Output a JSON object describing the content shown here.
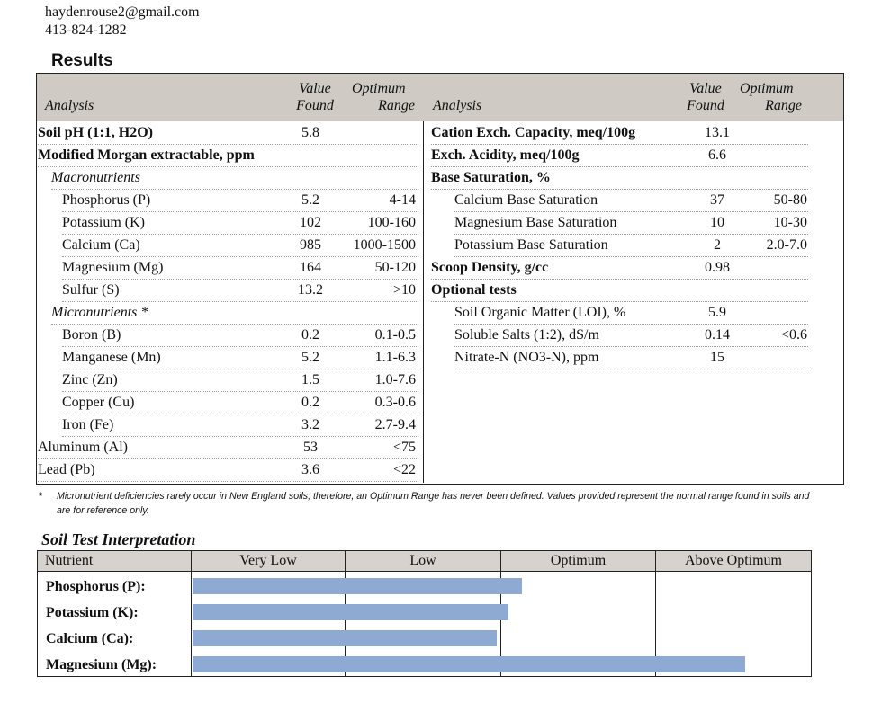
{
  "contact": {
    "email": "haydenrouse2@gmail.com",
    "phone": "413-824-1282"
  },
  "results": {
    "title": "Results",
    "headers": {
      "analysis": "Analysis",
      "value_top": "Value",
      "value_bottom": "Found",
      "optimum_top": "Optimum",
      "optimum_bottom": "Range"
    },
    "left_rows": [
      {
        "label": "Soil pH (1:1, H2O)",
        "value": "5.8",
        "range": "",
        "style": "bold",
        "indent": 0
      },
      {
        "label": "Modified Morgan extractable, ppm",
        "value": "",
        "range": "",
        "style": "bold",
        "indent": 0
      },
      {
        "label": "Macronutrients",
        "value": "",
        "range": "",
        "style": "italic",
        "indent": 1
      },
      {
        "label": "Phosphorus (P)",
        "value": "5.2",
        "range": "4-14",
        "style": "normal",
        "indent": 2
      },
      {
        "label": "Potassium (K)",
        "value": "102",
        "range": "100-160",
        "style": "normal",
        "indent": 2
      },
      {
        "label": "Calcium (Ca)",
        "value": "985",
        "range": "1000-1500",
        "style": "normal",
        "indent": 2
      },
      {
        "label": "Magnesium (Mg)",
        "value": "164",
        "range": "50-120",
        "style": "normal",
        "indent": 2
      },
      {
        "label": "Sulfur (S)",
        "value": "13.2",
        "range": ">10",
        "style": "normal",
        "indent": 2
      },
      {
        "label": "Micronutrients *",
        "value": "",
        "range": "",
        "style": "italic",
        "indent": 1
      },
      {
        "label": "Boron (B)",
        "value": "0.2",
        "range": "0.1-0.5",
        "style": "normal",
        "indent": 2
      },
      {
        "label": "Manganese (Mn)",
        "value": "5.2",
        "range": "1.1-6.3",
        "style": "normal",
        "indent": 2
      },
      {
        "label": "Zinc (Zn)",
        "value": "1.5",
        "range": "1.0-7.6",
        "style": "normal",
        "indent": 2
      },
      {
        "label": "Copper (Cu)",
        "value": "0.2",
        "range": "0.3-0.6",
        "style": "normal",
        "indent": 2
      },
      {
        "label": "Iron (Fe)",
        "value": "3.2",
        "range": "2.7-9.4",
        "style": "normal",
        "indent": 2
      },
      {
        "label": "Aluminum (Al)",
        "value": "53",
        "range": "<75",
        "style": "normal",
        "indent": 0
      },
      {
        "label": "Lead (Pb)",
        "value": "3.6",
        "range": "<22",
        "style": "normal",
        "indent": 0
      }
    ],
    "right_rows": [
      {
        "label": "Cation Exch. Capacity, meq/100g",
        "value": "13.1",
        "range": "",
        "style": "bold",
        "indent": 0
      },
      {
        "label": "Exch. Acidity, meq/100g",
        "value": "6.6",
        "range": "",
        "style": "bold",
        "indent": 0
      },
      {
        "label": "Base Saturation, %",
        "value": "",
        "range": "",
        "style": "bold",
        "indent": 0
      },
      {
        "label": "Calcium Base Saturation",
        "value": "37",
        "range": "50-80",
        "style": "normal",
        "indent": 1
      },
      {
        "label": "Magnesium Base Saturation",
        "value": "10",
        "range": "10-30",
        "style": "normal",
        "indent": 1
      },
      {
        "label": "Potassium Base Saturation",
        "value": "2",
        "range": "2.0-7.0",
        "style": "normal",
        "indent": 1
      },
      {
        "label": "Scoop Density, g/cc",
        "value": "0.98",
        "range": "",
        "style": "bold",
        "indent": 0
      },
      {
        "label": "Optional tests",
        "value": "",
        "range": "",
        "style": "bold",
        "indent": 0
      },
      {
        "label": "Soil Organic Matter (LOI), %",
        "value": "5.9",
        "range": "",
        "style": "normal",
        "indent": 1
      },
      {
        "label": "Soluble Salts (1:2), dS/m",
        "value": "0.14",
        "range": "<0.6",
        "style": "normal",
        "indent": 1
      },
      {
        "label": "Nitrate-N (NO3-N), ppm",
        "value": "15",
        "range": "",
        "style": "normal",
        "indent": 1
      }
    ],
    "footnote_marker": "*",
    "footnote": "Micronutrient deficiencies rarely occur in New England soils; therefore, an Optimum Range has never been defined. Values provided represent the normal range found in soils and are for reference only."
  },
  "interpretation": {
    "title": "Soil Test Interpretation",
    "columns": [
      "Nutrient",
      "Very Low",
      "Low",
      "Optimum",
      "Above Optimum"
    ],
    "bar_color": "#8eaad3",
    "rows": [
      {
        "nutrient": "Phosphorus (P):",
        "level": 0.533
      },
      {
        "nutrient": "Potassium (K):",
        "level": 0.512
      },
      {
        "nutrient": "Calcium (Ca):",
        "level": 0.492
      },
      {
        "nutrient": "Magnesium (Mg):",
        "level": 0.895
      }
    ]
  }
}
